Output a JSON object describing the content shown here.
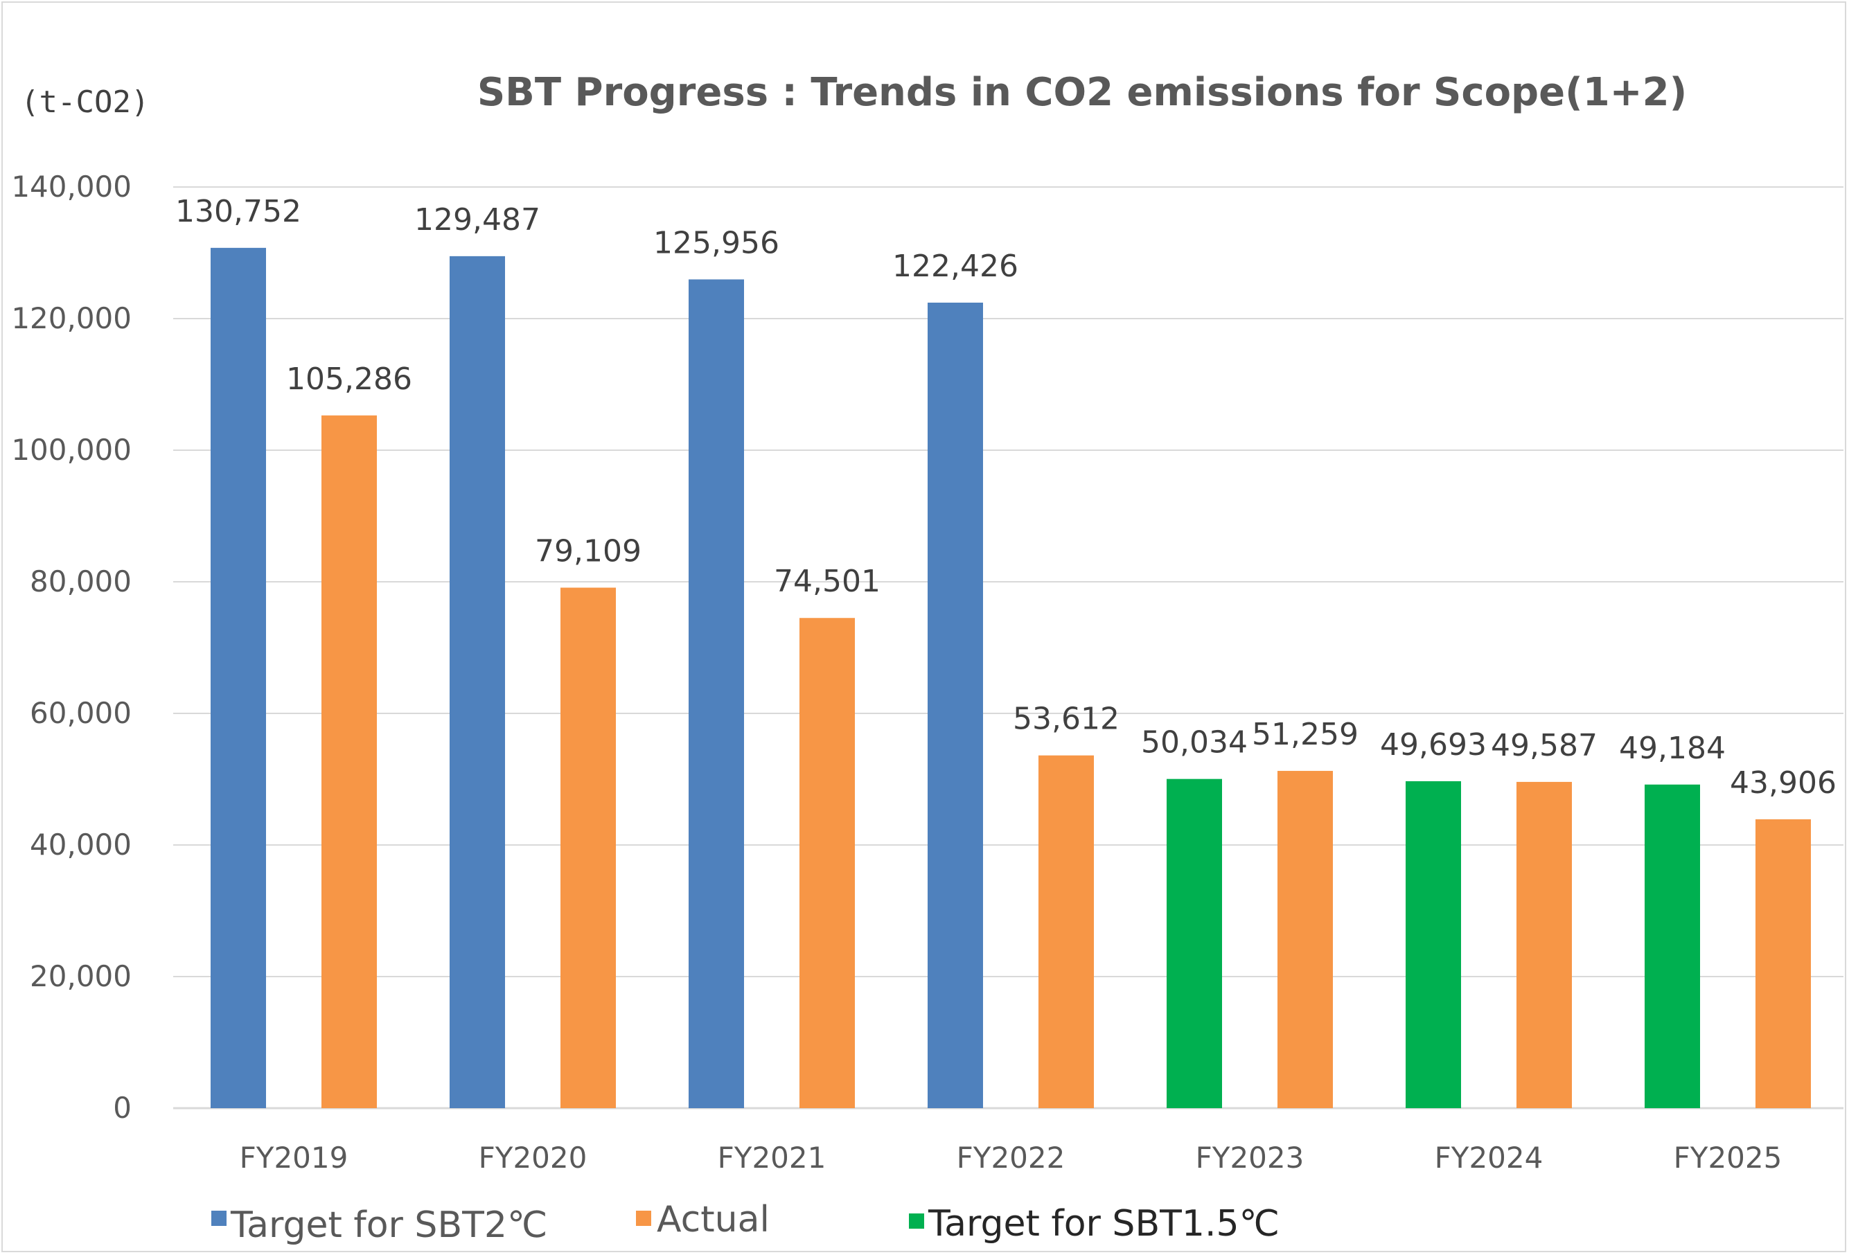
{
  "chart_data": {
    "type": "bar",
    "title": "SBT Progress : Trends in CO2 emissions for Scope(1+2)",
    "unit_label": "(t-CO2)",
    "categories": [
      "FY2019",
      "FY2020",
      "FY2021",
      "FY2022",
      "FY2023",
      "FY2024",
      "FY2025"
    ],
    "ylim": [
      0,
      140000
    ],
    "yticks": [
      0,
      20000,
      40000,
      60000,
      80000,
      100000,
      120000,
      140000
    ],
    "ytick_labels": [
      "0",
      "20,000",
      "40,000",
      "60,000",
      "80,000",
      "100,000",
      "120,000",
      "140,000"
    ],
    "grid": true,
    "legend_position": "bottom",
    "bars": [
      {
        "category": "FY2019",
        "series": "Target for SBT2℃",
        "value": 130752,
        "label": "130,752",
        "slot": 0
      },
      {
        "category": "FY2019",
        "series": "Actual",
        "value": 105286,
        "label": "105,286",
        "slot": 1
      },
      {
        "category": "FY2020",
        "series": "Target for SBT2℃",
        "value": 129487,
        "label": "129,487",
        "slot": 0
      },
      {
        "category": "FY2020",
        "series": "Actual",
        "value": 79109,
        "label": "79,109",
        "slot": 1
      },
      {
        "category": "FY2021",
        "series": "Target for SBT2℃",
        "value": 125956,
        "label": "125,956",
        "slot": 0
      },
      {
        "category": "FY2021",
        "series": "Actual",
        "value": 74501,
        "label": "74,501",
        "slot": 1
      },
      {
        "category": "FY2022",
        "series": "Target for SBT2℃",
        "value": 122426,
        "label": "122,426",
        "slot": 0
      },
      {
        "category": "FY2022",
        "series": "Actual",
        "value": 53612,
        "label": "53,612",
        "slot": 1
      },
      {
        "category": "FY2023",
        "series": "Target for SBT1.5℃",
        "value": 50034,
        "label": "50,034",
        "slot": 0
      },
      {
        "category": "FY2023",
        "series": "Actual",
        "value": 51259,
        "label": "51,259",
        "slot": 1
      },
      {
        "category": "FY2024",
        "series": "Target for SBT1.5℃",
        "value": 49693,
        "label": "49,693",
        "slot": 0
      },
      {
        "category": "FY2024",
        "series": "Actual",
        "value": 49587,
        "label": "49,587",
        "slot": 1
      },
      {
        "category": "FY2025",
        "series": "Target for SBT1.5℃",
        "value": 49184,
        "label": "49,184",
        "slot": 0
      },
      {
        "category": "FY2025",
        "series": "Actual",
        "value": 43906,
        "label": "43,906",
        "slot": 1
      }
    ],
    "series": [
      {
        "name": "Target for SBT2℃",
        "color": "#4f81bd"
      },
      {
        "name": "Actual",
        "color": "#f79646"
      },
      {
        "name": "Target for SBT1.5℃",
        "color": "#00b050"
      }
    ]
  }
}
